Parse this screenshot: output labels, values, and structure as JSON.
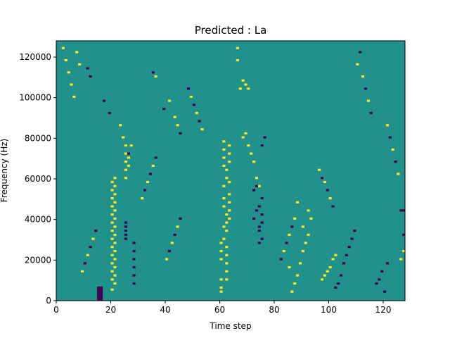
{
  "chart_data": {
    "type": "heatmap",
    "title": "Predicted : La",
    "xlabel": "Time step",
    "ylabel": "Frequency (Hz)",
    "xlim": [
      0,
      128
    ],
    "ylim": [
      0,
      128000
    ],
    "xticks": [
      0,
      20,
      40,
      60,
      80,
      100,
      120
    ],
    "xtick_labels": [
      "0",
      "20",
      "40",
      "60",
      "80",
      "100",
      "120"
    ],
    "yticks": [
      0,
      20000,
      40000,
      60000,
      80000,
      100000,
      120000
    ],
    "ytick_labels": [
      "0",
      "20000",
      "40000",
      "60000",
      "80000",
      "100000",
      "120000"
    ],
    "colormap": {
      "-1": "#440154",
      "0": "#21918c",
      "1": "#fde725"
    },
    "background_value": 0,
    "grid": false,
    "legend": "none",
    "cells": [
      [
        15,
        0,
        -1
      ],
      [
        15,
        1,
        -1
      ],
      [
        15,
        2,
        -1
      ],
      [
        15,
        3,
        -1
      ],
      [
        15,
        4,
        -1
      ],
      [
        15,
        5,
        -1
      ],
      [
        15,
        6,
        -1
      ],
      [
        16,
        0,
        -1
      ],
      [
        16,
        1,
        -1
      ],
      [
        16,
        2,
        -1
      ],
      [
        16,
        3,
        -1
      ],
      [
        16,
        4,
        -1
      ],
      [
        16,
        5,
        -1
      ],
      [
        16,
        6,
        -1
      ],
      [
        20,
        5,
        1
      ],
      [
        20,
        10,
        1
      ],
      [
        20,
        14,
        1
      ],
      [
        20,
        18,
        1
      ],
      [
        20,
        22,
        1
      ],
      [
        20,
        26,
        1
      ],
      [
        20,
        30,
        1
      ],
      [
        20,
        34,
        1
      ],
      [
        20,
        38,
        1
      ],
      [
        20,
        42,
        1
      ],
      [
        20,
        46,
        1
      ],
      [
        20,
        50,
        1
      ],
      [
        20,
        54,
        1
      ],
      [
        20,
        58,
        1
      ],
      [
        21,
        8,
        1
      ],
      [
        21,
        12,
        1
      ],
      [
        21,
        16,
        1
      ],
      [
        21,
        20,
        1
      ],
      [
        21,
        24,
        1
      ],
      [
        21,
        28,
        1
      ],
      [
        21,
        32,
        1
      ],
      [
        21,
        36,
        1
      ],
      [
        21,
        40,
        1
      ],
      [
        21,
        44,
        1
      ],
      [
        21,
        48,
        1
      ],
      [
        21,
        52,
        1
      ],
      [
        21,
        56,
        1
      ],
      [
        21,
        60,
        1
      ],
      [
        25,
        30,
        -1
      ],
      [
        25,
        32,
        -1
      ],
      [
        25,
        34,
        -1
      ],
      [
        25,
        36,
        -1
      ],
      [
        25,
        38,
        -1
      ],
      [
        25,
        60,
        1
      ],
      [
        25,
        64,
        1
      ],
      [
        25,
        68,
        1
      ],
      [
        25,
        72,
        1
      ],
      [
        25,
        76,
        1
      ],
      [
        26,
        66,
        1
      ],
      [
        26,
        70,
        1
      ],
      [
        28,
        8,
        -1
      ],
      [
        28,
        12,
        -1
      ],
      [
        28,
        16,
        -1
      ],
      [
        28,
        20,
        -1
      ],
      [
        28,
        24,
        -1
      ],
      [
        28,
        28,
        -1
      ],
      [
        60,
        4,
        1
      ],
      [
        60,
        6,
        1
      ],
      [
        60,
        10,
        1
      ],
      [
        60,
        20,
        1
      ],
      [
        60,
        24,
        1
      ],
      [
        60,
        28,
        1
      ],
      [
        61,
        30,
        1
      ],
      [
        61,
        36,
        1
      ],
      [
        61,
        46,
        1
      ],
      [
        61,
        50,
        1
      ],
      [
        61,
        56,
        1
      ],
      [
        61,
        66,
        1
      ],
      [
        61,
        70,
        1
      ],
      [
        61,
        74,
        1
      ],
      [
        61,
        78,
        1
      ],
      [
        62,
        10,
        1
      ],
      [
        62,
        14,
        1
      ],
      [
        62,
        18,
        1
      ],
      [
        62,
        22,
        1
      ],
      [
        62,
        26,
        1
      ],
      [
        62,
        34,
        1
      ],
      [
        62,
        38,
        1
      ],
      [
        62,
        42,
        1
      ],
      [
        62,
        60,
        1
      ],
      [
        62,
        64,
        1
      ],
      [
        63,
        40,
        1
      ],
      [
        63,
        44,
        1
      ],
      [
        63,
        48,
        1
      ],
      [
        63,
        52,
        1
      ],
      [
        63,
        58,
        1
      ],
      [
        63,
        68,
        1
      ],
      [
        63,
        72,
        1
      ],
      [
        63,
        76,
        1
      ],
      [
        66,
        118,
        1
      ],
      [
        66,
        124,
        1
      ],
      [
        67,
        104,
        1
      ],
      [
        68,
        108,
        1
      ],
      [
        69,
        106,
        1
      ],
      [
        70,
        104,
        1
      ],
      [
        68,
        80,
        1
      ],
      [
        69,
        82,
        1
      ],
      [
        70,
        76,
        1
      ],
      [
        71,
        72,
        1
      ],
      [
        72,
        68,
        1
      ],
      [
        73,
        60,
        1
      ],
      [
        74,
        56,
        1
      ],
      [
        74,
        34,
        -1
      ],
      [
        74,
        36,
        -1
      ],
      [
        75,
        38,
        -1
      ],
      [
        75,
        42,
        -1
      ],
      [
        74,
        46,
        -1
      ],
      [
        75,
        50,
        -1
      ],
      [
        74,
        28,
        -1
      ],
      [
        75,
        30,
        -1
      ],
      [
        76,
        80,
        -1
      ],
      [
        75,
        76,
        -1
      ],
      [
        72,
        40,
        -1
      ],
      [
        73,
        44,
        -1
      ],
      [
        72,
        54,
        -1
      ],
      [
        73,
        56,
        -1
      ],
      [
        86,
        4,
        1
      ],
      [
        87,
        8,
        1
      ],
      [
        88,
        12,
        1
      ],
      [
        85,
        16,
        1
      ],
      [
        89,
        18,
        1
      ],
      [
        90,
        24,
        1
      ],
      [
        91,
        28,
        1
      ],
      [
        92,
        32,
        1
      ],
      [
        90,
        36,
        1
      ],
      [
        93,
        40,
        1
      ],
      [
        92,
        44,
        1
      ],
      [
        88,
        48,
        1
      ],
      [
        97,
        10,
        1
      ],
      [
        98,
        12,
        1
      ],
      [
        99,
        14,
        1
      ],
      [
        100,
        16,
        1
      ],
      [
        101,
        20,
        1
      ],
      [
        102,
        22,
        1
      ],
      [
        102,
        6,
        -1
      ],
      [
        103,
        8,
        -1
      ],
      [
        104,
        12,
        -1
      ],
      [
        105,
        18,
        -1
      ],
      [
        106,
        22,
        -1
      ],
      [
        107,
        26,
        -1
      ],
      [
        108,
        30,
        -1
      ],
      [
        109,
        34,
        -1
      ],
      [
        117,
        8,
        -1
      ],
      [
        118,
        10,
        -1
      ],
      [
        119,
        14,
        -1
      ],
      [
        120,
        4,
        -1
      ],
      [
        121,
        18,
        -1
      ],
      [
        126,
        20,
        1
      ],
      [
        127,
        24,
        1
      ],
      [
        126,
        44,
        -1
      ],
      [
        127,
        44,
        -1
      ],
      [
        127,
        32,
        -1
      ],
      [
        2,
        124,
        1
      ],
      [
        3,
        118,
        1
      ],
      [
        4,
        112,
        1
      ],
      [
        5,
        106,
        1
      ],
      [
        6,
        100,
        1
      ],
      [
        7,
        122,
        1
      ],
      [
        8,
        116,
        1
      ],
      [
        11,
        114,
        -1
      ],
      [
        12,
        110,
        -1
      ],
      [
        17,
        98,
        -1
      ],
      [
        19,
        92,
        -1
      ],
      [
        23,
        86,
        1
      ],
      [
        24,
        80,
        1
      ],
      [
        26,
        72,
        -1
      ],
      [
        27,
        76,
        1
      ],
      [
        35,
        112,
        -1
      ],
      [
        36,
        110,
        1
      ],
      [
        39,
        94,
        -1
      ],
      [
        41,
        98,
        1
      ],
      [
        43,
        90,
        1
      ],
      [
        44,
        86,
        1
      ],
      [
        45,
        82,
        -1
      ],
      [
        48,
        104,
        -1
      ],
      [
        49,
        100,
        1
      ],
      [
        50,
        96,
        -1
      ],
      [
        51,
        92,
        1
      ],
      [
        52,
        88,
        -1
      ],
      [
        53,
        84,
        1
      ],
      [
        110,
        116,
        1
      ],
      [
        111,
        122,
        -1
      ],
      [
        112,
        110,
        1
      ],
      [
        113,
        104,
        -1
      ],
      [
        114,
        98,
        1
      ],
      [
        115,
        92,
        -1
      ],
      [
        121,
        86,
        1
      ],
      [
        122,
        80,
        -1
      ],
      [
        123,
        74,
        1
      ],
      [
        124,
        68,
        -1
      ],
      [
        125,
        62,
        1
      ],
      [
        96,
        64,
        1
      ],
      [
        97,
        60,
        -1
      ],
      [
        98,
        58,
        1
      ],
      [
        99,
        54,
        -1
      ],
      [
        100,
        50,
        1
      ],
      [
        101,
        46,
        -1
      ],
      [
        31,
        50,
        1
      ],
      [
        32,
        54,
        -1
      ],
      [
        33,
        58,
        1
      ],
      [
        34,
        62,
        -1
      ],
      [
        35,
        66,
        1
      ],
      [
        36,
        70,
        -1
      ],
      [
        40,
        20,
        1
      ],
      [
        41,
        24,
        -1
      ],
      [
        42,
        28,
        1
      ],
      [
        43,
        32,
        -1
      ],
      [
        44,
        36,
        1
      ],
      [
        45,
        40,
        -1
      ],
      [
        82,
        20,
        -1
      ],
      [
        83,
        24,
        1
      ],
      [
        84,
        28,
        -1
      ],
      [
        85,
        32,
        1
      ],
      [
        86,
        36,
        -1
      ],
      [
        87,
        40,
        1
      ],
      [
        9,
        14,
        1
      ],
      [
        10,
        18,
        -1
      ],
      [
        11,
        22,
        1
      ],
      [
        12,
        26,
        -1
      ],
      [
        13,
        30,
        1
      ],
      [
        14,
        34,
        -1
      ]
    ]
  }
}
